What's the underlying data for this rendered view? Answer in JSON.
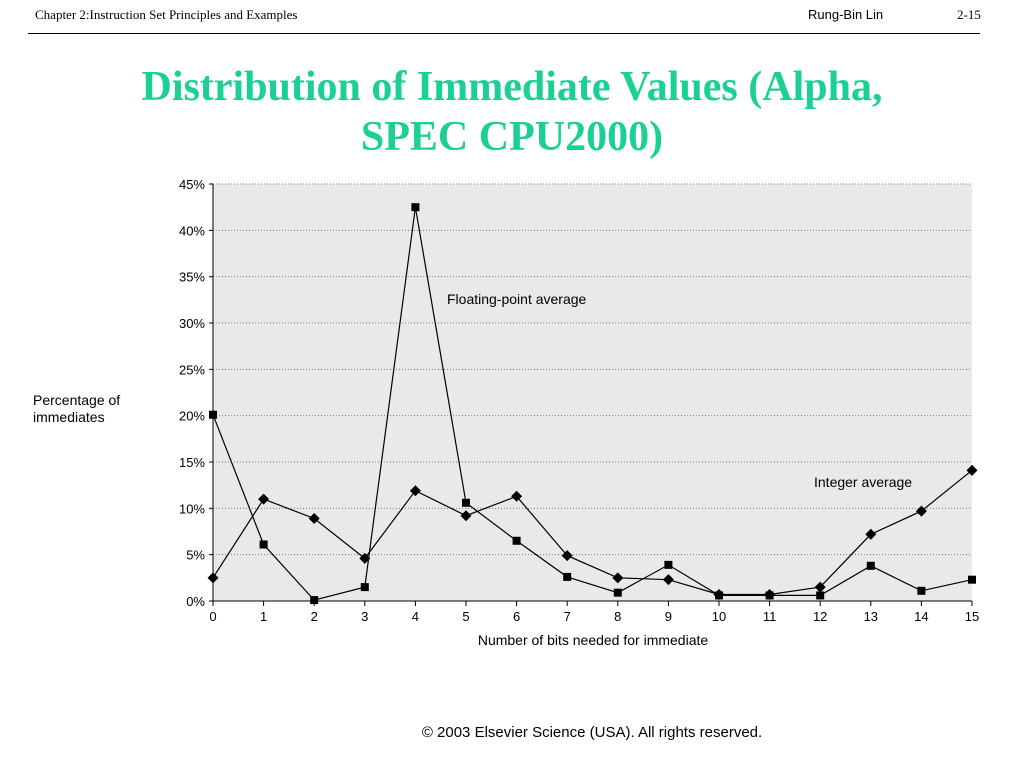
{
  "header": {
    "chapter": "Chapter 2:Instruction Set Principles and Examples",
    "author": "Rung-Bin Lin",
    "page": "2-15"
  },
  "title": {
    "line1": "Distribution of Immediate Values (Alpha,",
    "line2": "SPEC CPU2000)"
  },
  "copyright": "© 2003 Elsevier Science (USA). All rights reserved.",
  "colors": {
    "title": "#1ccf95",
    "plot_background": "#e9e9e9",
    "series": "#000000"
  },
  "chart_data": {
    "type": "line",
    "title": "",
    "xlabel": "Number of bits needed for immediate",
    "ylabel_lines": [
      "Percentage of",
      "immediates"
    ],
    "x": [
      0,
      1,
      2,
      3,
      4,
      5,
      6,
      7,
      8,
      9,
      10,
      11,
      12,
      13,
      14,
      15
    ],
    "xlim": [
      0,
      15
    ],
    "ylim": [
      0,
      45
    ],
    "yticks": [
      0,
      5,
      10,
      15,
      20,
      25,
      30,
      35,
      40,
      45
    ],
    "ytick_labels": [
      "0%",
      "5%",
      "10%",
      "15%",
      "20%",
      "25%",
      "30%",
      "35%",
      "40%",
      "45%"
    ],
    "grid": "horizontal-dotted",
    "series": [
      {
        "name": "Floating-point average",
        "marker": "square",
        "values": [
          20.1,
          6.1,
          0.1,
          1.5,
          42.5,
          10.6,
          6.5,
          2.6,
          0.9,
          3.9,
          0.6,
          0.6,
          0.6,
          3.8,
          1.1,
          2.3
        ]
      },
      {
        "name": "Integer average",
        "marker": "diamond",
        "values": [
          2.5,
          11.0,
          8.9,
          4.6,
          11.9,
          9.2,
          11.3,
          4.9,
          2.5,
          2.3,
          0.7,
          0.7,
          1.5,
          7.2,
          9.7,
          14.1
        ]
      }
    ]
  }
}
